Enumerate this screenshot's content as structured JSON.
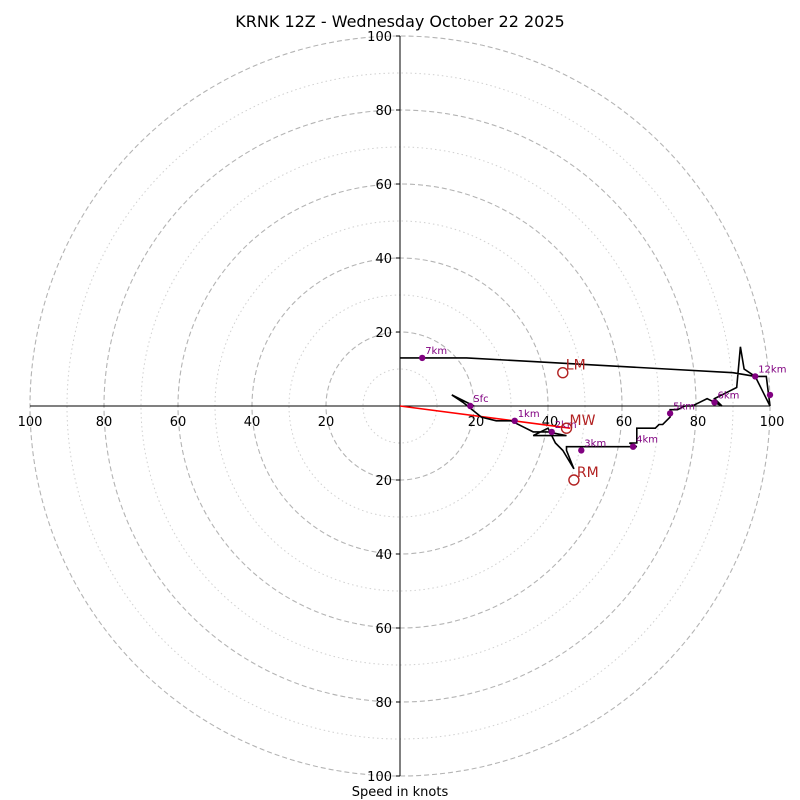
{
  "chart_data": {
    "type": "hodograph",
    "title": "KRNK 12Z - Wednesday October 22 2025",
    "xlabel": "Speed in knots",
    "ring_major": [
      20,
      40,
      60,
      80,
      100
    ],
    "ring_minor": [
      10,
      30,
      50,
      70,
      90
    ],
    "axis_ticks": {
      "x_left": [
        "100",
        "80",
        "60",
        "40",
        "20"
      ],
      "x_right": [
        "20",
        "40",
        "60",
        "80",
        "100"
      ],
      "y_up": [
        "20",
        "40",
        "60",
        "80",
        "100"
      ],
      "y_down": [
        "20",
        "40",
        "60",
        "80",
        "100"
      ]
    },
    "axis_tick_values": [
      20,
      40,
      60,
      80,
      100
    ],
    "max_speed": 100,
    "hodograph_trace": [
      [
        20,
        0
      ],
      [
        14,
        3
      ],
      [
        17,
        1
      ],
      [
        22,
        -3
      ],
      [
        26,
        -4
      ],
      [
        30,
        -4
      ],
      [
        34,
        -6
      ],
      [
        36,
        -7
      ],
      [
        40,
        -7
      ],
      [
        45,
        -8
      ],
      [
        41,
        -8
      ],
      [
        36,
        -8
      ],
      [
        40,
        -6
      ],
      [
        42,
        -10
      ],
      [
        44,
        -12
      ],
      [
        47,
        -17
      ],
      [
        45,
        -12
      ],
      [
        45,
        -11
      ],
      [
        50,
        -11
      ],
      [
        55,
        -11
      ],
      [
        60,
        -11
      ],
      [
        64,
        -11
      ],
      [
        62,
        -10
      ],
      [
        64,
        -10
      ],
      [
        64,
        -9
      ],
      [
        64,
        -6
      ],
      [
        68,
        -6
      ],
      [
        69,
        -6
      ],
      [
        70,
        -5
      ],
      [
        71,
        -5
      ],
      [
        73,
        -3
      ],
      [
        73,
        -1
      ],
      [
        75,
        -1
      ],
      [
        77,
        0
      ],
      [
        79,
        0
      ],
      [
        81,
        1
      ],
      [
        83,
        2
      ],
      [
        85,
        1
      ],
      [
        87,
        0
      ],
      [
        85,
        2
      ],
      [
        89,
        4
      ],
      [
        91,
        5
      ],
      [
        92,
        16
      ],
      [
        93,
        10
      ],
      [
        96,
        8
      ],
      [
        99,
        8
      ],
      [
        100,
        0
      ],
      [
        96,
        8
      ],
      [
        90,
        9
      ],
      [
        72,
        10
      ],
      [
        54,
        11
      ],
      [
        36,
        12
      ],
      [
        18,
        13
      ],
      [
        0,
        13
      ]
    ],
    "storm_shear_line": [
      [
        0,
        0
      ],
      [
        46,
        -6
      ]
    ],
    "height_markers": [
      {
        "label": "Sfc",
        "u": 19,
        "v": 0
      },
      {
        "label": "1km",
        "u": 31,
        "v": -4
      },
      {
        "label": "2km",
        "u": 41,
        "v": -7
      },
      {
        "label": "3km",
        "u": 49,
        "v": -12
      },
      {
        "label": "4km",
        "u": 63,
        "v": -11
      },
      {
        "label": "5km",
        "u": 73,
        "v": -2
      },
      {
        "label": "6km",
        "u": 85,
        "v": 1
      },
      {
        "label": "12km",
        "u": 96,
        "v": 8
      },
      {
        "label": "7km",
        "u": 6,
        "v": 13
      }
    ],
    "extra_marker": {
      "u": 100,
      "v": 3
    },
    "storm_motions": [
      {
        "label": "LM",
        "u": 44,
        "v": 9
      },
      {
        "label": "MW",
        "u": 45,
        "v": -6
      },
      {
        "label": "RM",
        "u": 47,
        "v": -20
      }
    ]
  }
}
